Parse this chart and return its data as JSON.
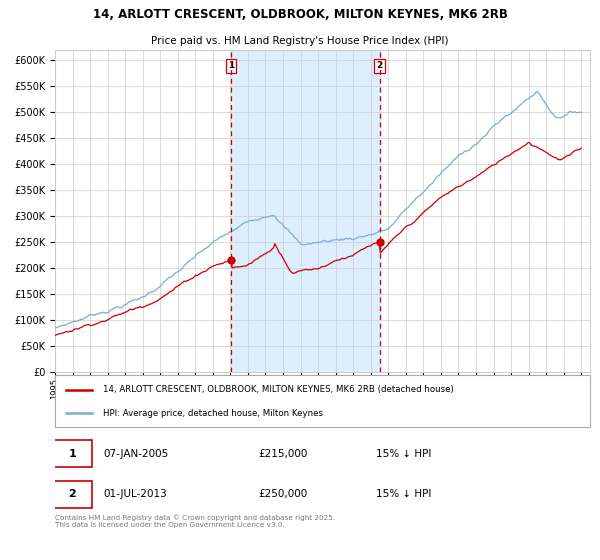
{
  "title": "14, ARLOTT CRESCENT, OLDBROOK, MILTON KEYNES, MK6 2RB",
  "subtitle": "Price paid vs. HM Land Registry's House Price Index (HPI)",
  "legend_line1": "14, ARLOTT CRESCENT, OLDBROOK, MILTON KEYNES, MK6 2RB (detached house)",
  "legend_line2": "HPI: Average price, detached house, Milton Keynes",
  "annotation1_label": "1",
  "annotation1_date": "07-JAN-2005",
  "annotation1_price": "£215,000",
  "annotation1_hpi": "15% ↓ HPI",
  "annotation2_label": "2",
  "annotation2_date": "01-JUL-2013",
  "annotation2_price": "£250,000",
  "annotation2_hpi": "15% ↓ HPI",
  "footer": "Contains HM Land Registry data © Crown copyright and database right 2025.\nThis data is licensed under the Open Government Licence v3.0.",
  "red_color": "#cc0000",
  "blue_color": "#7aadd4",
  "shade_color": "#ddeeff",
  "vline_color": "#cc0000",
  "background_color": "#ffffff",
  "grid_color": "#cccccc",
  "ylim": [
    0,
    620000
  ],
  "yticks": [
    0,
    50000,
    100000,
    150000,
    200000,
    250000,
    300000,
    350000,
    400000,
    450000,
    500000,
    550000,
    600000
  ],
  "year_start": 1995,
  "year_end": 2025,
  "vline1_year": 2005.04,
  "vline2_year": 2013.5,
  "sale1_year": 2005.04,
  "sale1_value": 215000,
  "sale2_year": 2013.5,
  "sale2_value": 250000,
  "figwidth": 6.0,
  "figheight": 5.6,
  "dpi": 100
}
